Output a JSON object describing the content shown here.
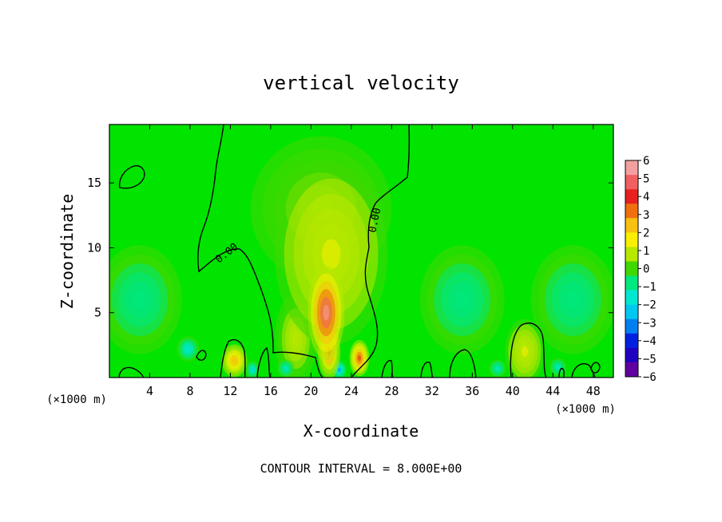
{
  "chart_data": {
    "type": "heatmap",
    "title": "vertical velocity",
    "xlabel": "X-coordinate",
    "ylabel": "Z-coordinate",
    "x_unit": "(×1000 m)",
    "footer": "CONTOUR INTERVAL = 8.000E+00",
    "xlim": [
      0,
      50
    ],
    "ylim": [
      0,
      19.5
    ],
    "x_ticks": [
      4,
      8,
      12,
      16,
      20,
      24,
      28,
      32,
      36,
      40,
      44,
      48
    ],
    "y_ticks": [
      5,
      10,
      15
    ],
    "contour_label": "0.00",
    "colorbar": {
      "range": [
        -6,
        6
      ],
      "tick_labels": [
        "6",
        "5",
        "4",
        "3",
        "2",
        "1",
        "0",
        "−1",
        "−2",
        "−3",
        "−4",
        "−5",
        "−6"
      ],
      "colors": [
        "#f4a0a0",
        "#f06060",
        "#e82020",
        "#f07010",
        "#f8c010",
        "#f8f000",
        "#b8e800",
        "#40d800",
        "#00e880",
        "#00e8d0",
        "#00c8f0",
        "#0080f0",
        "#0020e0",
        "#2000c0",
        "#6000a0"
      ]
    },
    "features": [
      {
        "x": 21.5,
        "z": 5.0,
        "w": 0.95,
        "sx": 1.3,
        "sz": 2.6
      },
      {
        "x": 22.0,
        "z": 9.5,
        "w": 0.25,
        "sx": 4.0,
        "sz": 5.0
      },
      {
        "x": 21.0,
        "z": 13.0,
        "w": 0.12,
        "sx": 5.0,
        "sz": 4.0
      },
      {
        "x": 24.8,
        "z": 1.5,
        "w": 0.7,
        "sx": 0.7,
        "sz": 1.0
      },
      {
        "x": 21.8,
        "z": 2.0,
        "w": 0.6,
        "sx": 0.8,
        "sz": 1.5
      },
      {
        "x": 12.4,
        "z": 1.3,
        "w": 0.5,
        "sx": 0.9,
        "sz": 0.9
      },
      {
        "x": 41.2,
        "z": 2.0,
        "w": 0.25,
        "sx": 1.4,
        "sz": 1.8
      },
      {
        "x": 18.5,
        "z": 3.0,
        "w": 0.2,
        "sx": 1.5,
        "sz": 2.5
      },
      {
        "x": 3.0,
        "z": 6.0,
        "w": -0.2,
        "sx": 3.0,
        "sz": 3.0
      },
      {
        "x": 35.0,
        "z": 6.0,
        "w": -0.2,
        "sx": 3.0,
        "sz": 3.0
      },
      {
        "x": 46.0,
        "z": 6.0,
        "w": -0.15,
        "sx": 3.0,
        "sz": 3.0
      },
      {
        "x": 7.8,
        "z": 2.2,
        "w": -0.35,
        "sx": 0.8,
        "sz": 0.7
      },
      {
        "x": 22.8,
        "z": 0.6,
        "w": -0.5,
        "sx": 0.5,
        "sz": 0.5
      },
      {
        "x": 14.2,
        "z": 0.6,
        "w": -0.4,
        "sx": 0.5,
        "sz": 0.5
      },
      {
        "x": 17.5,
        "z": 0.7,
        "w": -0.3,
        "sx": 0.6,
        "sz": 0.5
      },
      {
        "x": 38.5,
        "z": 0.7,
        "w": -0.3,
        "sx": 0.6,
        "sz": 0.5
      },
      {
        "x": 44.5,
        "z": 0.8,
        "w": -0.3,
        "sx": 0.6,
        "sz": 0.5
      }
    ]
  }
}
